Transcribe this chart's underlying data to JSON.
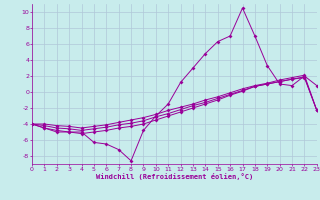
{
  "xlabel": "Windchill (Refroidissement éolien,°C)",
  "bg_color": "#c8ecec",
  "grid_color": "#b0c8d8",
  "line_color": "#990099",
  "xlim": [
    0,
    23
  ],
  "ylim": [
    -9,
    11
  ],
  "xticks": [
    0,
    1,
    2,
    3,
    4,
    5,
    6,
    7,
    8,
    9,
    10,
    11,
    12,
    13,
    14,
    15,
    16,
    17,
    18,
    19,
    20,
    21,
    22,
    23
  ],
  "yticks": [
    -8,
    -6,
    -4,
    -2,
    0,
    2,
    4,
    6,
    8,
    10
  ],
  "line1_x": [
    0,
    1,
    2,
    3,
    4,
    5,
    6,
    7,
    8,
    9,
    10,
    11,
    12,
    13,
    14,
    15,
    16,
    17,
    18,
    19,
    20,
    21,
    22,
    23
  ],
  "line1_y": [
    -4.0,
    -4.5,
    -5.0,
    -5.0,
    -5.0,
    -6.3,
    -6.5,
    -7.2,
    -8.6,
    -4.8,
    -3.0,
    -1.5,
    1.2,
    3.0,
    4.8,
    6.3,
    7.0,
    10.5,
    7.0,
    3.3,
    1.0,
    0.8,
    2.0,
    0.8
  ],
  "line2_x": [
    0,
    1,
    2,
    3,
    4,
    5,
    6,
    7,
    8,
    9,
    10,
    11,
    12,
    13,
    14,
    15,
    16,
    17,
    18,
    19,
    20,
    21,
    22,
    23
  ],
  "line2_y": [
    -4.0,
    -4.5,
    -4.8,
    -5.0,
    -5.2,
    -5.0,
    -4.8,
    -4.5,
    -4.3,
    -4.0,
    -3.5,
    -3.0,
    -2.5,
    -2.0,
    -1.5,
    -1.0,
    -0.4,
    0.1,
    0.7,
    1.0,
    1.3,
    1.6,
    1.8,
    -2.3
  ],
  "line3_x": [
    0,
    1,
    2,
    3,
    4,
    5,
    6,
    7,
    8,
    9,
    10,
    11,
    12,
    13,
    14,
    15,
    16,
    17,
    18,
    19,
    20,
    21,
    22,
    23
  ],
  "line3_y": [
    -4.0,
    -4.2,
    -4.5,
    -4.6,
    -4.8,
    -4.6,
    -4.4,
    -4.1,
    -3.9,
    -3.6,
    -3.1,
    -2.7,
    -2.2,
    -1.7,
    -1.3,
    -0.8,
    -0.3,
    0.2,
    0.7,
    1.0,
    1.3,
    1.6,
    1.9,
    -2.3
  ],
  "line4_x": [
    0,
    1,
    2,
    3,
    4,
    5,
    6,
    7,
    8,
    9,
    10,
    11,
    12,
    13,
    14,
    15,
    16,
    17,
    18,
    19,
    20,
    21,
    22,
    23
  ],
  "line4_y": [
    -4.0,
    -4.0,
    -4.2,
    -4.3,
    -4.5,
    -4.3,
    -4.1,
    -3.8,
    -3.5,
    -3.2,
    -2.8,
    -2.3,
    -1.9,
    -1.5,
    -1.0,
    -0.6,
    -0.1,
    0.4,
    0.8,
    1.1,
    1.5,
    1.8,
    2.1,
    -2.3
  ]
}
